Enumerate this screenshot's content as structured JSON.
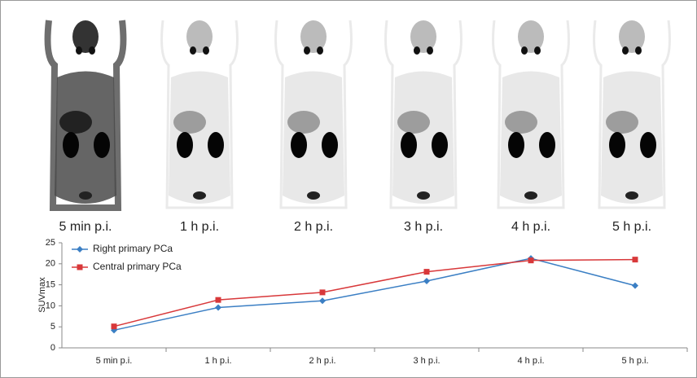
{
  "panel_labels": [
    "5 min p.i.",
    "1 h p.i.",
    "2 h p.i.",
    "3 h p.i.",
    "4 h p.i.",
    "5 h p.i."
  ],
  "chart_data": {
    "type": "line",
    "y_label": "SUVmax",
    "categories": [
      "5 min p.i.",
      "1 h p.i.",
      "2 h p.i.",
      "3 h p.i.",
      "4 h p.i.",
      "5 h p.i."
    ],
    "series": [
      {
        "name": "Right primary PCa",
        "color": "#3b7fc4",
        "marker": "diamond",
        "values": [
          4.2,
          9.6,
          11.2,
          15.9,
          21.3,
          14.8
        ]
      },
      {
        "name": "Central primary PCa",
        "color": "#d8383a",
        "marker": "square",
        "values": [
          5.1,
          11.4,
          13.2,
          18.1,
          20.8,
          21.0
        ]
      }
    ],
    "ylim": [
      0,
      25
    ],
    "yticks": [
      0,
      5,
      10,
      15,
      20,
      25
    ],
    "grid": false,
    "legend": "upper left"
  }
}
